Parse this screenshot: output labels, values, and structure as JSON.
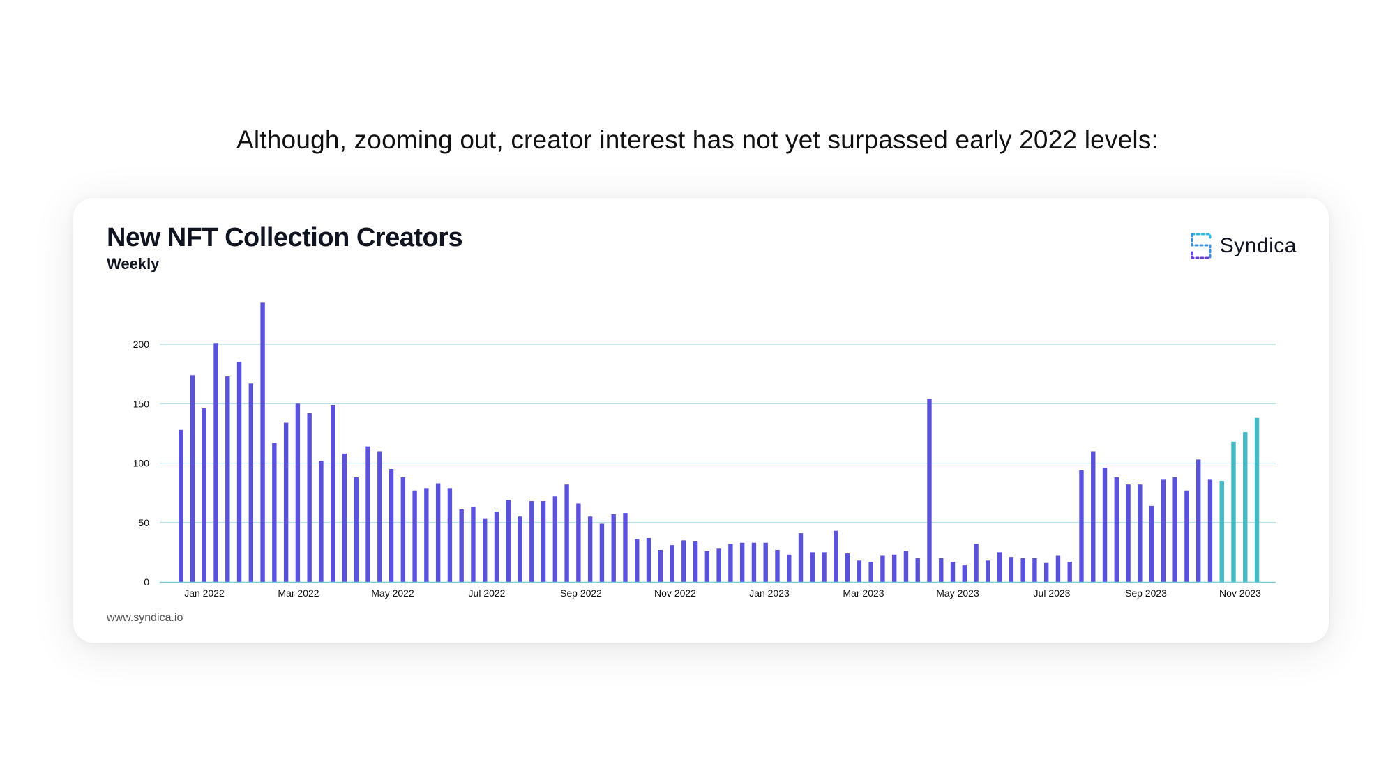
{
  "headline": "Although, zooming out, creator interest has not yet surpassed early 2022 levels:",
  "brand": {
    "name": "Syndica",
    "icon": "syndica-logo-icon"
  },
  "footer": {
    "url": "www.syndica.io"
  },
  "colors": {
    "bar": "#5b52db",
    "bar_highlight": "#44b9c4",
    "grid": "#a8dde6",
    "axis": "#7fcad6"
  },
  "chart_data": {
    "type": "bar",
    "title": "New NFT Collection Creators",
    "subtitle": "Weekly",
    "xlabel": "",
    "ylabel": "",
    "ylim": [
      0,
      240
    ],
    "yticks": [
      0,
      50,
      100,
      150,
      200
    ],
    "xticks": [
      "Jan 2022",
      "Mar 2022",
      "May 2022",
      "Jul 2022",
      "Sep 2022",
      "Nov 2022",
      "Jan 2023",
      "Mar 2023",
      "May 2023",
      "Jul 2023",
      "Sep 2023",
      "Nov 2023"
    ],
    "grid": true,
    "legend": "none",
    "highlight_last": 4,
    "values": [
      128,
      174,
      146,
      201,
      173,
      185,
      167,
      235,
      117,
      134,
      150,
      142,
      102,
      149,
      108,
      88,
      114,
      110,
      95,
      88,
      77,
      79,
      83,
      79,
      61,
      63,
      53,
      59,
      69,
      55,
      68,
      68,
      72,
      82,
      66,
      55,
      49,
      57,
      58,
      36,
      37,
      27,
      31,
      35,
      34,
      26,
      28,
      32,
      33,
      33,
      33,
      27,
      23,
      41,
      25,
      25,
      43,
      24,
      18,
      17,
      22,
      23,
      26,
      20,
      154,
      20,
      17,
      14,
      32,
      18,
      25,
      21,
      20,
      20,
      16,
      22,
      17,
      94,
      110,
      96,
      88,
      82,
      82,
      64,
      86,
      88,
      77,
      103,
      86,
      85,
      118,
      126,
      138
    ]
  }
}
